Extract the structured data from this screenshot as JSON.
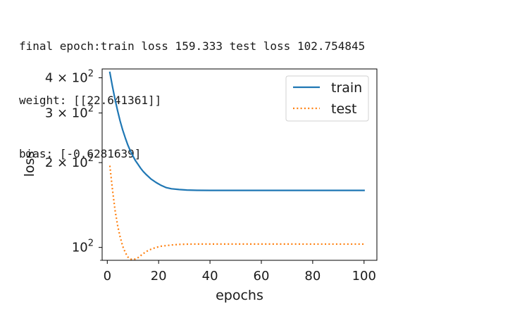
{
  "output_lines": [
    "final epoch:train loss 159.333 test loss 102.754845",
    "weight: [[22.641361]]",
    "bias: [-0.6281639]"
  ],
  "chart_data": {
    "type": "line",
    "xlabel": "epochs",
    "ylabel": "loss",
    "yscale": "log",
    "xlim": [
      -2,
      105
    ],
    "ylim": [
      90,
      430
    ],
    "xticks": [
      0,
      20,
      40,
      60,
      80,
      100
    ],
    "yticks": [
      {
        "value": 100,
        "base": "10",
        "exp": "2"
      },
      {
        "value": 200,
        "base": "2 × 10",
        "exp": "2"
      },
      {
        "value": 300,
        "base": "3 × 10",
        "exp": "2"
      },
      {
        "value": 400,
        "base": "4 × 10",
        "exp": "2"
      }
    ],
    "legend_position": "top-right",
    "grid": false,
    "series": [
      {
        "name": "train",
        "color": "#1f77b4",
        "style": "solid",
        "x": [
          1,
          2,
          3,
          4,
          5,
          6,
          7,
          8,
          9,
          10,
          11,
          12,
          13,
          14,
          15,
          17,
          19,
          21,
          23,
          25,
          28,
          31,
          35,
          40,
          50,
          60,
          70,
          80,
          90,
          100
        ],
        "y": [
          418,
          373,
          336,
          306,
          281,
          261,
          245,
          231,
          220,
          211,
          203,
          197,
          191,
          186,
          182,
          175,
          170,
          166,
          163,
          161.5,
          160.5,
          159.8,
          159.5,
          159.4,
          159.35,
          159.33,
          159.33,
          159.33,
          159.33,
          159.333
        ]
      },
      {
        "name": "test",
        "color": "#ff7f0e",
        "style": "dotted",
        "x": [
          1,
          2,
          3,
          4,
          5,
          6,
          7,
          8,
          9,
          10,
          11,
          12,
          13,
          14,
          15,
          17,
          19,
          21,
          23,
          25,
          28,
          31,
          35,
          40,
          50,
          60,
          70,
          80,
          90,
          100
        ],
        "y": [
          195,
          161,
          136,
          120,
          109,
          101,
          96,
          92.5,
          91,
          90.5,
          91,
          92,
          93.5,
          95,
          96.5,
          98.5,
          100,
          101,
          101.5,
          102,
          102.5,
          102.7,
          102.8,
          102.8,
          102.8,
          102.8,
          102.8,
          102.75,
          102.75,
          102.754845
        ]
      }
    ]
  }
}
